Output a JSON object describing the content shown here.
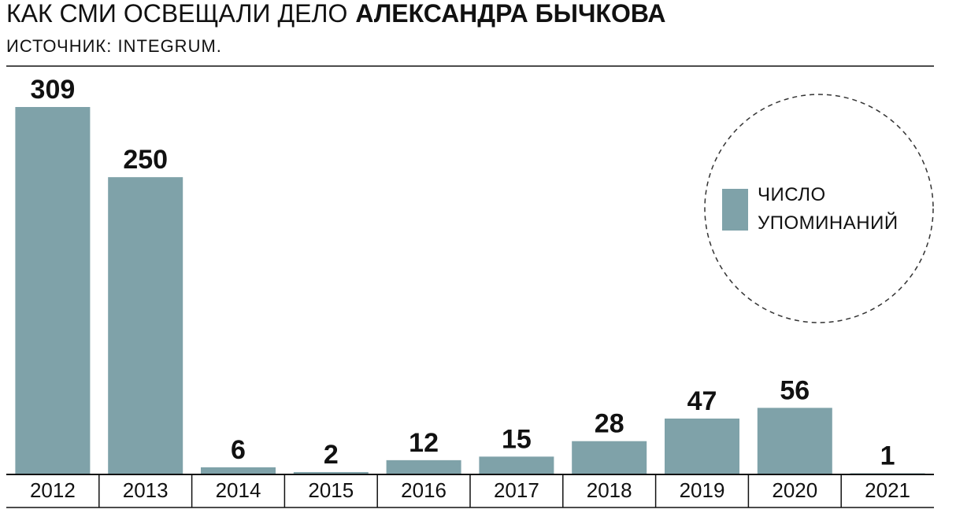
{
  "chart_data": {
    "type": "bar",
    "title": "КАК СМИ ОСВЕЩАЛИ ДЕЛО",
    "title_emphasis": "АЛЕКСАНДРА БЫЧКОВА",
    "subtitle": "ИСТОЧНИК: INTEGRUM.",
    "categories": [
      "2012",
      "2013",
      "2014",
      "2015",
      "2016",
      "2017",
      "2018",
      "2019",
      "2020",
      "2021"
    ],
    "series": [
      {
        "name": "ЧИСЛО УПОМИНАНИЙ",
        "color": "#7fa2a9",
        "values": [
          309,
          250,
          6,
          2,
          12,
          15,
          28,
          47,
          56,
          1
        ]
      }
    ]
  }
}
